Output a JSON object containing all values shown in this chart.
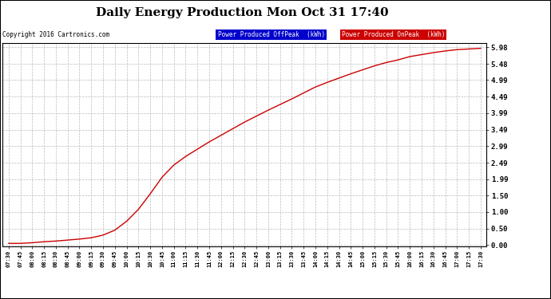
{
  "title": "Daily Energy Production Mon Oct 31 17:40",
  "copyright": "Copyright 2016 Cartronics.com",
  "legend_offpeak": "Power Produced OffPeak  (kWh)",
  "legend_onpeak": "Power Produced OnPeak  (kWh)",
  "legend_offpeak_bg": "#0000CC",
  "legend_onpeak_bg": "#CC0000",
  "legend_text_color": "#FFFFFF",
  "background_color": "#FFFFFF",
  "figure_bg": "#FFFFFF",
  "grid_color": "#BBBBBB",
  "line_color": "#CC0000",
  "yticks": [
    0.0,
    0.5,
    1.0,
    1.5,
    1.99,
    2.49,
    2.99,
    3.49,
    3.99,
    4.49,
    4.99,
    5.48,
    5.98
  ],
  "ylim": [
    -0.05,
    6.1
  ],
  "x_labels": [
    "07:30",
    "07:45",
    "08:00",
    "08:15",
    "08:30",
    "08:45",
    "09:00",
    "09:15",
    "09:30",
    "09:45",
    "10:00",
    "10:15",
    "10:30",
    "10:45",
    "11:00",
    "11:15",
    "11:30",
    "11:45",
    "12:00",
    "12:15",
    "12:30",
    "12:45",
    "13:00",
    "13:15",
    "13:30",
    "13:45",
    "14:00",
    "14:15",
    "14:30",
    "14:45",
    "15:00",
    "15:15",
    "15:30",
    "15:45",
    "16:00",
    "16:15",
    "16:30",
    "16:45",
    "17:00",
    "17:15",
    "17:30"
  ],
  "y_data": [
    0.05,
    0.05,
    0.07,
    0.1,
    0.12,
    0.15,
    0.18,
    0.22,
    0.3,
    0.45,
    0.72,
    1.08,
    1.55,
    2.05,
    2.42,
    2.68,
    2.9,
    3.12,
    3.32,
    3.52,
    3.72,
    3.9,
    4.08,
    4.25,
    4.42,
    4.6,
    4.78,
    4.92,
    5.05,
    5.18,
    5.3,
    5.42,
    5.52,
    5.6,
    5.7,
    5.76,
    5.82,
    5.87,
    5.91,
    5.93,
    5.95
  ]
}
